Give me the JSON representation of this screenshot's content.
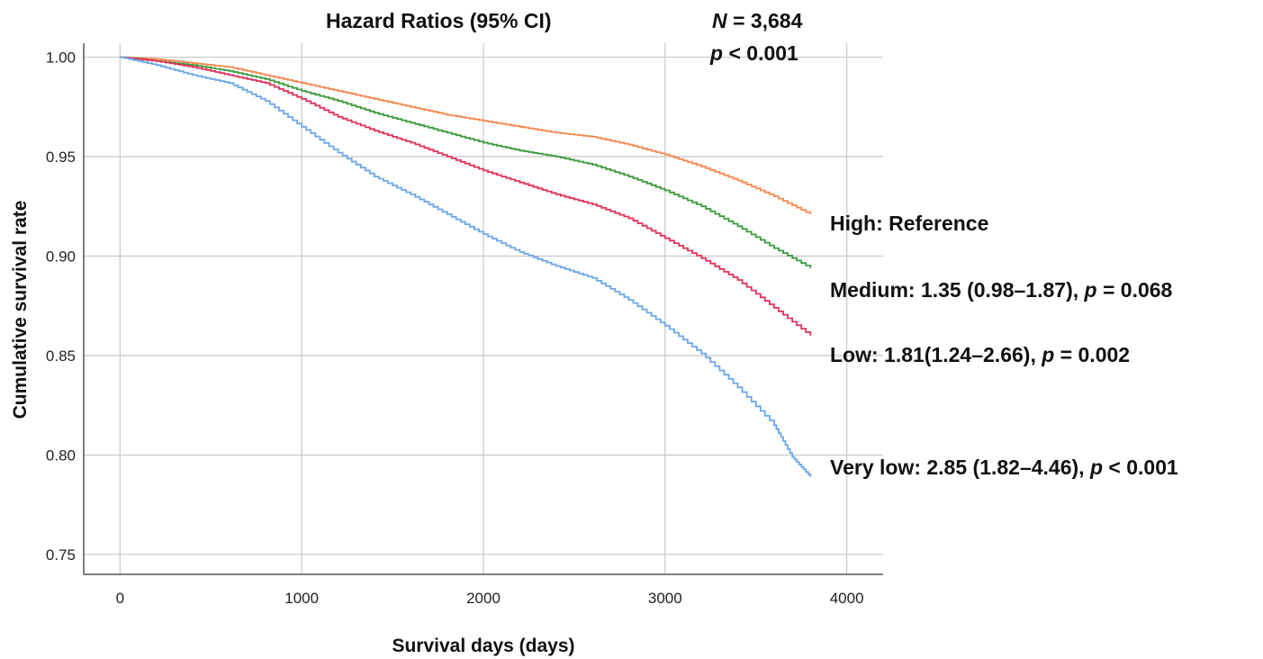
{
  "chart_data": {
    "type": "line",
    "title": "Hazard Ratios (95% CI)",
    "xlabel": "Survival days (days)",
    "ylabel": "Cumulative survival rate",
    "xlim": [
      -200,
      4200
    ],
    "ylim": [
      0.74,
      1.007
    ],
    "x_ticks": [
      "0",
      "1000",
      "2000",
      "3000",
      "4000"
    ],
    "y_ticks": [
      "0.75",
      "0.80",
      "0.85",
      "0.90",
      "0.95",
      "1.00"
    ],
    "grid": true,
    "annotations": {
      "n_label": "N",
      "n_value": " = 3,684",
      "p_label": "p",
      "p_value": " < 0.001"
    },
    "series": [
      {
        "name": "High",
        "label_prefix": "High: Reference",
        "label_p": "",
        "label_value": "",
        "color": "#f4884f",
        "x": [
          0,
          200,
          400,
          600,
          800,
          1000,
          1200,
          1400,
          1600,
          1800,
          2000,
          2200,
          2400,
          2600,
          2800,
          3000,
          3200,
          3400,
          3600,
          3800
        ],
        "y": [
          1.0,
          0.999,
          0.997,
          0.995,
          0.991,
          0.987,
          0.983,
          0.979,
          0.975,
          0.971,
          0.968,
          0.965,
          0.962,
          0.96,
          0.956,
          0.951,
          0.945,
          0.938,
          0.93,
          0.921
        ]
      },
      {
        "name": "Medium",
        "label_prefix": "Medium: 1.35 (0.98–1.87), ",
        "label_p": "p",
        "label_value": " = 0.068",
        "color": "#3b9a3b",
        "x": [
          0,
          200,
          400,
          600,
          800,
          1000,
          1200,
          1400,
          1600,
          1800,
          2000,
          2200,
          2400,
          2600,
          2800,
          3000,
          3200,
          3400,
          3600,
          3800
        ],
        "y": [
          1.0,
          0.998,
          0.996,
          0.993,
          0.989,
          0.983,
          0.978,
          0.972,
          0.967,
          0.962,
          0.957,
          0.953,
          0.95,
          0.946,
          0.94,
          0.933,
          0.925,
          0.915,
          0.904,
          0.894
        ]
      },
      {
        "name": "Low",
        "label_prefix": "Low: 1.81(1.24–2.66), ",
        "label_p": "p",
        "label_value": " = 0.002",
        "color": "#e0325a",
        "x": [
          0,
          200,
          400,
          600,
          800,
          1000,
          1200,
          1400,
          1600,
          1800,
          2000,
          2200,
          2400,
          2600,
          2800,
          3000,
          3200,
          3400,
          3600,
          3800
        ],
        "y": [
          1.0,
          0.998,
          0.995,
          0.991,
          0.987,
          0.979,
          0.97,
          0.963,
          0.957,
          0.95,
          0.943,
          0.937,
          0.931,
          0.926,
          0.919,
          0.909,
          0.899,
          0.888,
          0.874,
          0.86
        ]
      },
      {
        "name": "Very low",
        "label_prefix": "Very low: 2.85 (1.82–4.46), ",
        "label_p": "p",
        "label_value": " < 0.001",
        "color": "#6ba7ea",
        "x": [
          0,
          200,
          400,
          600,
          800,
          1000,
          1200,
          1400,
          1600,
          1800,
          2000,
          2200,
          2400,
          2600,
          2800,
          3000,
          3200,
          3400,
          3600,
          3700,
          3800
        ],
        "y": [
          1.0,
          0.996,
          0.991,
          0.987,
          0.978,
          0.965,
          0.952,
          0.94,
          0.931,
          0.921,
          0.911,
          0.902,
          0.895,
          0.889,
          0.878,
          0.865,
          0.851,
          0.834,
          0.815,
          0.799,
          0.789
        ]
      }
    ]
  }
}
